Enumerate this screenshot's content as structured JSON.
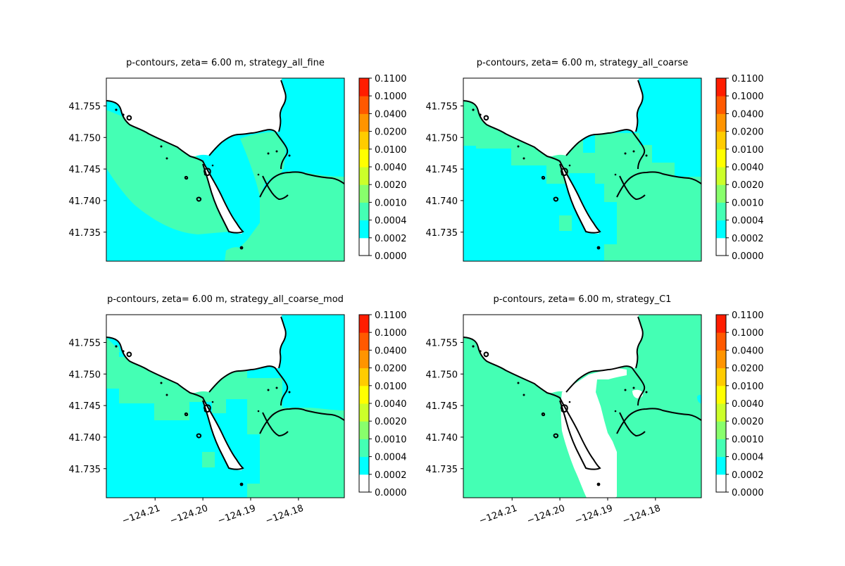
{
  "chart_data": {
    "type": "heatmap",
    "colorbar": {
      "levels": [
        "0.0000",
        "0.0002",
        "0.0004",
        "0.0010",
        "0.0020",
        "0.0040",
        "0.0100",
        "0.0200",
        "0.0400",
        "0.1000",
        "0.1100"
      ],
      "colors": [
        "#ffffff",
        "#00ffff",
        "#44ffb4",
        "#88ff6c",
        "#ccff2a",
        "#ffff00",
        "#ffcc00",
        "#ff9400",
        "#ff5900",
        "#ff1d00"
      ]
    },
    "x_ticks": [
      "−124.21",
      "−124.20",
      "−124.19",
      "−124.18"
    ],
    "y_ticks": [
      "41.755",
      "41.750",
      "41.745",
      "41.740",
      "41.735"
    ],
    "xlim": [
      -124.2202,
      -124.1704
    ],
    "ylim": [
      41.7304,
      41.7594
    ],
    "colors": {
      "cyan": "#00ffff",
      "mint": "#44ffb4",
      "coast": "#000000"
    },
    "panels": [
      {
        "id": "fine",
        "title": "p-contours, zeta= 6.00 m, strategy_all_fine",
        "show_x_ticks": false
      },
      {
        "id": "coarse",
        "title": "p-contours, zeta= 6.00 m, strategy_all_coarse",
        "show_x_ticks": false
      },
      {
        "id": "coarse_mod",
        "title": "p-contours, zeta= 6.00 m, strategy_all_coarse_mod",
        "show_x_ticks": true
      },
      {
        "id": "c1",
        "title": "p-contours, zeta= 6.00 m, strategy_C1",
        "show_x_ticks": true
      }
    ]
  }
}
